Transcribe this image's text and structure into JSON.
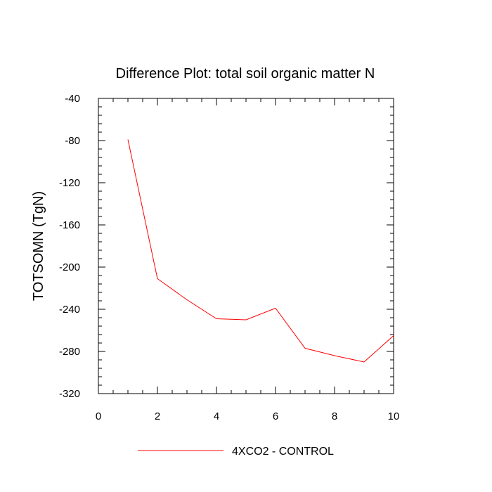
{
  "chart_data": {
    "type": "line",
    "title": "Difference Plot: total soil organic matter N",
    "xlabel": "",
    "ylabel": "TOTSOMN  (TgN)",
    "xlim": [
      0,
      10
    ],
    "ylim": [
      -320,
      -40
    ],
    "xticks": [
      0,
      2,
      4,
      6,
      8,
      10
    ],
    "yticks": [
      -40,
      -80,
      -120,
      -160,
      -200,
      -240,
      -280,
      -320
    ],
    "x_minor_step": 0.5,
    "y_minor_step": 8,
    "grid": false,
    "legend_position": "bottom-center",
    "series": [
      {
        "name": "4XCO2 - CONTROL",
        "color": "#ff0000",
        "x": [
          1,
          2,
          3,
          4,
          5,
          6,
          7,
          8,
          9,
          10
        ],
        "y": [
          -79,
          -211,
          -231,
          -249,
          -250,
          -239,
          -277,
          -284,
          -290,
          -265
        ]
      }
    ]
  }
}
